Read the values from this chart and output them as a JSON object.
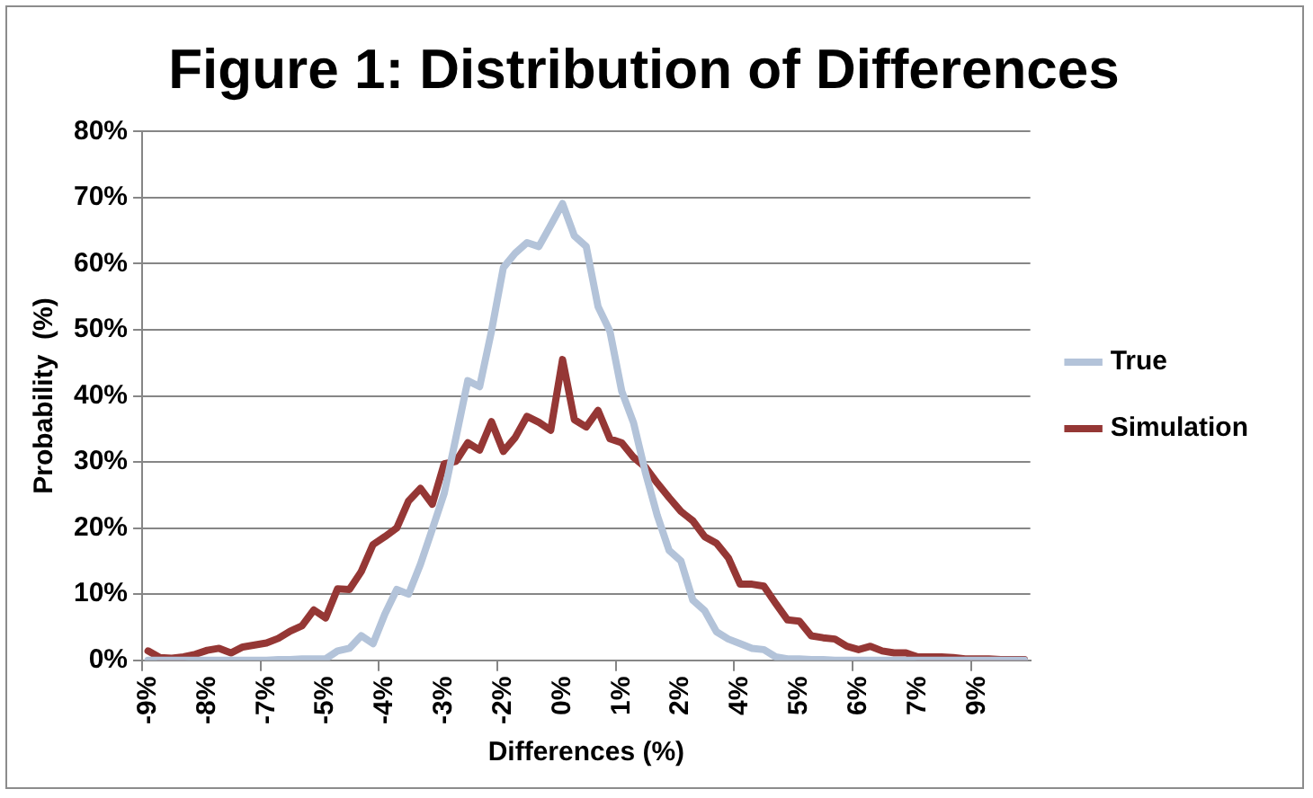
{
  "chart_data": {
    "type": "line",
    "title": "Figure 1: Distribution of Differences",
    "xlabel": "Differences (%)",
    "ylabel": "Probability  (%)",
    "categories": [
      "-9%",
      null,
      null,
      null,
      null,
      "-8%",
      null,
      null,
      null,
      null,
      "-7%",
      null,
      null,
      null,
      null,
      "-5%",
      null,
      null,
      null,
      null,
      "-4%",
      null,
      null,
      null,
      null,
      "-3%",
      null,
      null,
      null,
      null,
      "-2%",
      null,
      null,
      null,
      null,
      "0%",
      null,
      null,
      null,
      null,
      "1%",
      null,
      null,
      null,
      null,
      "2%",
      null,
      null,
      null,
      null,
      "4%",
      null,
      null,
      null,
      null,
      "5%",
      null,
      null,
      null,
      null,
      "6%",
      null,
      null,
      null,
      null,
      "7%",
      null,
      null,
      null,
      null,
      "9%",
      null,
      null,
      null,
      null
    ],
    "series": [
      {
        "name": "True",
        "color": "#b3c3d9",
        "values": [
          0,
          0,
          0,
          0,
          0,
          0,
          0,
          0,
          0,
          0,
          0,
          0.1,
          0.1,
          0.2,
          0.2,
          0.2,
          1.4,
          1.8,
          3.7,
          2.5,
          7.0,
          10.7,
          10.0,
          14.5,
          19.8,
          25.2,
          33.7,
          42.3,
          41.4,
          49.8,
          59.4,
          61.6,
          63.2,
          62.6,
          65.8,
          69.1,
          64.2,
          62.6,
          53.5,
          49.8,
          40.7,
          35.9,
          28.4,
          21.9,
          16.6,
          15.0,
          9.1,
          7.5,
          4.3,
          3.2,
          2.5,
          1.8,
          1.6,
          0.5,
          0.2,
          0.2,
          0.1,
          0.1,
          0,
          0,
          0,
          0,
          0,
          0,
          0,
          0,
          0,
          0,
          0,
          0,
          0,
          0,
          0,
          0,
          0
        ]
      },
      {
        "name": "Simulation",
        "color": "#953735",
        "values": [
          1.4,
          0.4,
          0.3,
          0.5,
          0.9,
          1.5,
          1.8,
          1.1,
          2.0,
          2.3,
          2.6,
          3.3,
          4.4,
          5.2,
          7.6,
          6.4,
          10.8,
          10.7,
          13.4,
          17.5,
          18.7,
          20.0,
          24.1,
          26.0,
          23.6,
          29.7,
          30.1,
          32.9,
          31.8,
          36.1,
          31.6,
          33.7,
          36.9,
          36.0,
          34.8,
          45.5,
          36.4,
          35.3,
          37.8,
          33.5,
          32.9,
          30.7,
          29.2,
          26.8,
          24.6,
          22.5,
          21.1,
          18.7,
          17.7,
          15.5,
          11.5,
          11.5,
          11.2,
          8.6,
          6.1,
          5.9,
          3.7,
          3.4,
          3.2,
          2.1,
          1.6,
          2.1,
          1.4,
          1.1,
          1.1,
          0.5,
          0.5,
          0.5,
          0.4,
          0.2,
          0.2,
          0.2,
          0.1,
          0.1,
          0.1
        ]
      }
    ],
    "ylim": [
      0,
      80
    ],
    "yticks": [
      {
        "value": 0,
        "label": "0%"
      },
      {
        "value": 10,
        "label": "10%"
      },
      {
        "value": 20,
        "label": "20%"
      },
      {
        "value": 30,
        "label": "30%"
      },
      {
        "value": 40,
        "label": "40%"
      },
      {
        "value": 50,
        "label": "50%"
      },
      {
        "value": 60,
        "label": "60%"
      },
      {
        "value": 70,
        "label": "70%"
      },
      {
        "value": 80,
        "label": "80%"
      }
    ],
    "grid": "y",
    "legend": "right",
    "marker": "none",
    "line_style": "solid"
  }
}
